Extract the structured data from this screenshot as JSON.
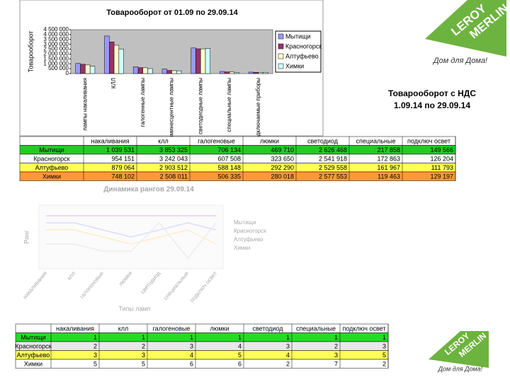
{
  "chart_data": {
    "type": "bar",
    "title": "Товарооборот от 01.09 по 29.09.14",
    "y_label": "Товарооборот",
    "categories": [
      "лампы накаливания",
      "КЛЛ",
      "галогенные лампы",
      "люминесцентные лампы",
      "светодиодные лампы",
      "специальные лампы",
      "подключаемые приборы"
    ],
    "series": [
      {
        "name": "Мытищи",
        "color": "#9999ff",
        "values": [
          1039531,
          3853325,
          706134,
          469710,
          2626468,
          217858,
          149566
        ]
      },
      {
        "name": "Красногорск",
        "color": "#993366",
        "values": [
          954151,
          3242043,
          607508,
          323650,
          2541918,
          172863,
          126204
        ]
      },
      {
        "name": "Алтуфьево",
        "color": "#ffffcc",
        "values": [
          879064,
          2903512,
          588148,
          292290,
          2529558,
          161967,
          111793
        ]
      },
      {
        "name": "Химки",
        "color": "#ccffff",
        "values": [
          748102,
          2508011,
          506335,
          280018,
          2577553,
          119463,
          129197
        ]
      }
    ],
    "ylim": [
      0,
      4500000
    ],
    "yticks": [
      0,
      {
        "value": 500000,
        "label": "500 000"
      },
      {
        "value": 1000000,
        "label": "1 000 000"
      },
      {
        "value": 1500000,
        "label": "1 500 000"
      },
      {
        "value": 2000000,
        "label": "2 000 000"
      },
      {
        "value": 2500000,
        "label": "2 500 000"
      },
      {
        "value": 3000000,
        "label": "3 000 000"
      },
      {
        "value": 3500000,
        "label": "3 500 000"
      },
      {
        "value": 4000000,
        "label": "4 000 000"
      },
      {
        "value": 4500000,
        "label": "4 500 000"
      }
    ],
    "legend": "right"
  },
  "heading": [
    "Товарооборот с НДС",
    "1.09.14 по 29.09.14"
  ],
  "logo": {
    "brand_top": "LEROY",
    "brand_bottom": "MERLIN",
    "slogan": "Дом для Дома!"
  },
  "sales_table": {
    "header": [
      "накаливания",
      "клл",
      "галогеновые",
      "люмки",
      "светодиод",
      "специальные",
      "подключ освет"
    ],
    "rows": [
      {
        "label": "Мытищи",
        "cells": [
          "1 039 531",
          "3 853 325",
          "706 134",
          "469 710",
          "2 626 468",
          "217 858",
          "149 566"
        ]
      },
      {
        "label": "Красногорск",
        "cells": [
          "954 151",
          "3 242 043",
          "607 508",
          "323 650",
          "2 541 918",
          "172 863",
          "126 204"
        ]
      },
      {
        "label": "Алтуфьево",
        "cells": [
          "879 064",
          "2 903 512",
          "588 148",
          "292 290",
          "2 529 558",
          "161 967",
          "111 793"
        ]
      },
      {
        "label": "Химки",
        "cells": [
          "748 102",
          "2 508 011",
          "506 335",
          "280 018",
          "2 577 553",
          "119 463",
          "129 197"
        ]
      }
    ]
  },
  "rank_chart": {
    "title": "Динамика рангов 29.09.14",
    "y_label": "Ранг",
    "x_label": "Типы ламп"
  },
  "rank_table": {
    "header": [
      "накаливания",
      "клл",
      "галогеновые",
      "люмки",
      "светодиод",
      "специальные",
      "подключ освет"
    ],
    "rows": [
      {
        "label": "Мытищи",
        "cells": [
          1,
          1,
          1,
          1,
          1,
          1,
          1
        ]
      },
      {
        "label": "Красногорск",
        "cells": [
          2,
          2,
          3,
          4,
          3,
          2,
          3
        ]
      },
      {
        "label": "Алтуфьево",
        "cells": [
          3,
          3,
          4,
          5,
          4,
          3,
          5
        ]
      },
      {
        "label": "Химки",
        "cells": [
          5,
          5,
          6,
          6,
          2,
          7,
          2
        ]
      }
    ]
  }
}
